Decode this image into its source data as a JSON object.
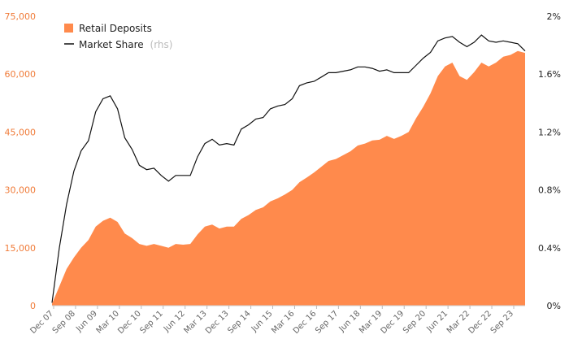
{
  "chart_data": {
    "type": "area",
    "x_labels": [
      "Dec 07",
      "Sep 08",
      "Jun 09",
      "Mar 10",
      "Dec 10",
      "Sep 11",
      "Jun 12",
      "Mar 13",
      "Dec 13",
      "Sep 14",
      "Jun 15",
      "Mar 16",
      "Dec 16",
      "Sep 17",
      "Jun 18",
      "Mar 19",
      "Dec 19",
      "Sep 20",
      "Jun 21",
      "Mar 22",
      "Dec 22",
      "Sep 23"
    ],
    "y_left": {
      "min": 0,
      "max": 75000,
      "ticks": [
        "0",
        "15,000",
        "30,000",
        "45,000",
        "60,000",
        "75,000"
      ],
      "tick_values": [
        0,
        15000,
        30000,
        45000,
        60000,
        75000
      ]
    },
    "y_right": {
      "min": 0,
      "max": 2,
      "ticks": [
        "0%",
        "0.4%",
        "0.8%",
        "1.2%",
        "1.6%",
        "2%"
      ],
      "tick_values": [
        0,
        0.4,
        0.8,
        1.2,
        1.6,
        2.0
      ]
    },
    "legend": {
      "retail_label": "Retail Deposits",
      "share_label": "Market Share",
      "share_suffix": "(rhs)"
    },
    "colors": {
      "retail": "#ff8a4c",
      "share": "#111111",
      "left_axis_text": "#f07c3a"
    },
    "series": [
      {
        "name": "Retail Deposits",
        "axis": "left",
        "kind": "area",
        "values": [
          500,
          5000,
          9500,
          12500,
          15000,
          17000,
          20500,
          22000,
          22800,
          21700,
          18700,
          17500,
          16000,
          15500,
          16000,
          15500,
          15000,
          16000,
          15800,
          16000,
          18500,
          20500,
          21000,
          20000,
          20500,
          20500,
          22500,
          23500,
          24800,
          25500,
          27000,
          27800,
          28800,
          30000,
          32000,
          33200,
          34500,
          36000,
          37500,
          38000,
          39000,
          40000,
          41500,
          42000,
          42800,
          43000,
          44000,
          43200,
          44000,
          45000,
          48500,
          51500,
          55000,
          59500,
          62000,
          63000,
          59500,
          58500,
          60500,
          63000,
          62000,
          63000,
          64500,
          65000,
          66000,
          65500
        ]
      },
      {
        "name": "Market Share",
        "axis": "right",
        "kind": "line",
        "values": [
          0.02,
          0.4,
          0.7,
          0.93,
          1.07,
          1.14,
          1.34,
          1.43,
          1.45,
          1.36,
          1.16,
          1.08,
          0.97,
          0.94,
          0.95,
          0.9,
          0.86,
          0.9,
          0.9,
          0.9,
          1.03,
          1.12,
          1.15,
          1.11,
          1.12,
          1.11,
          1.22,
          1.25,
          1.29,
          1.3,
          1.36,
          1.38,
          1.39,
          1.43,
          1.52,
          1.54,
          1.55,
          1.58,
          1.61,
          1.61,
          1.62,
          1.63,
          1.65,
          1.65,
          1.64,
          1.62,
          1.63,
          1.61,
          1.61,
          1.61,
          1.66,
          1.71,
          1.75,
          1.83,
          1.85,
          1.86,
          1.82,
          1.79,
          1.82,
          1.87,
          1.83,
          1.82,
          1.83,
          1.82,
          1.81,
          1.76
        ]
      }
    ]
  }
}
